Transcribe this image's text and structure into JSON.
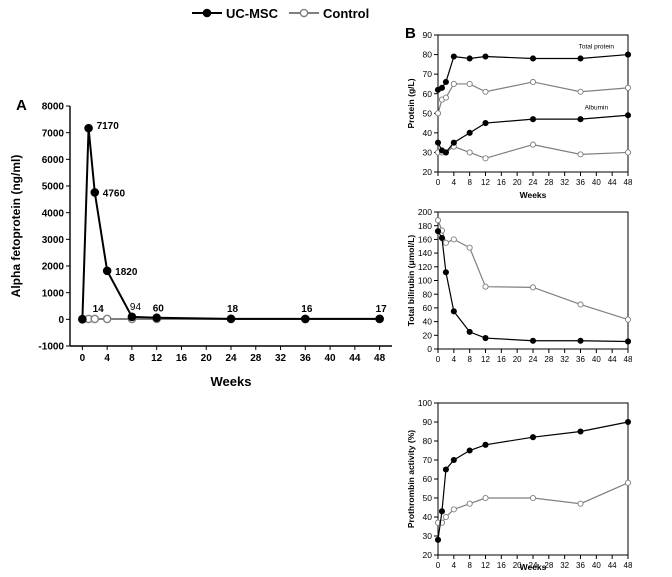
{
  "legend": {
    "items": [
      {
        "label": "UC-MSC",
        "color": "#000000",
        "marker": "filled-circle"
      },
      {
        "label": "Control",
        "color": "#7f7f7f",
        "marker": "open-circle"
      }
    ]
  },
  "chart_data": [
    {
      "id": "A",
      "panel_label": "A",
      "type": "line",
      "xlabel": "Weeks",
      "ylabel": "Alpha fetoprotein (ng/ml)",
      "xlim": [
        -2,
        50
      ],
      "ylim": [
        -1000,
        8000
      ],
      "xticks": [
        0,
        4,
        8,
        12,
        16,
        20,
        24,
        28,
        32,
        36,
        40,
        44,
        48
      ],
      "yticks": [
        -1000,
        0,
        1000,
        2000,
        3000,
        4000,
        5000,
        6000,
        7000,
        8000
      ],
      "grid": false,
      "series": [
        {
          "name": "UC-MSC",
          "style": "filled",
          "x": [
            0,
            1,
            2,
            4,
            8,
            12,
            24,
            36,
            48
          ],
          "y": [
            0,
            7170,
            4760,
            1820,
            94,
            60,
            18,
            16,
            17
          ]
        },
        {
          "name": "Control",
          "style": "open",
          "x": [
            0,
            1,
            2,
            4,
            8,
            12,
            24,
            36,
            48
          ],
          "y": [
            14,
            14,
            14,
            14,
            14,
            14,
            14,
            14,
            14
          ]
        }
      ],
      "data_labels": [
        {
          "text": "7170",
          "x": 1,
          "y": 7170
        },
        {
          "text": "4760",
          "x": 2,
          "y": 4760
        },
        {
          "text": "1820",
          "x": 4,
          "y": 1820
        },
        {
          "text": "14",
          "x": 1,
          "y": 14
        },
        {
          "text": "94",
          "x": 8,
          "y": 94
        },
        {
          "text": "60",
          "x": 12,
          "y": 60
        },
        {
          "text": "18",
          "x": 24,
          "y": 18
        },
        {
          "text": "16",
          "x": 36,
          "y": 16
        },
        {
          "text": "17",
          "x": 48,
          "y": 17
        }
      ]
    },
    {
      "id": "B1",
      "panel_label": "B",
      "type": "line",
      "xlabel": "Weeks",
      "ylabel": "Protein (g/L)",
      "xlim": [
        0,
        48
      ],
      "ylim": [
        20,
        90
      ],
      "xticks": [
        0,
        4,
        8,
        12,
        16,
        20,
        24,
        28,
        32,
        36,
        40,
        44,
        48
      ],
      "yticks": [
        20,
        30,
        40,
        50,
        60,
        70,
        80,
        90
      ],
      "grid": false,
      "annotations": [
        {
          "text": "Total protein",
          "x": 40,
          "y": 83
        },
        {
          "text": "Albumin",
          "x": 40,
          "y": 52
        }
      ],
      "series": [
        {
          "name": "UC-MSC",
          "style": "filled",
          "x": [
            0,
            1,
            2,
            4,
            8,
            12,
            24,
            36,
            48
          ],
          "y": [
            62,
            63,
            66,
            79,
            78,
            79,
            78,
            78,
            80
          ]
        },
        {
          "name": "Control",
          "style": "open",
          "x": [
            0,
            1,
            2,
            4,
            8,
            12,
            24,
            36,
            48
          ],
          "y": [
            50,
            57,
            58,
            65,
            65,
            61,
            66,
            61,
            63
          ]
        },
        {
          "name": "UC-MSC",
          "style": "filled",
          "x": [
            0,
            1,
            2,
            4,
            8,
            12,
            24,
            36,
            48
          ],
          "y": [
            35,
            31,
            30,
            35,
            40,
            45,
            47,
            47,
            49
          ]
        },
        {
          "name": "Control",
          "style": "open",
          "x": [
            0,
            1,
            2,
            4,
            8,
            12,
            24,
            36,
            48
          ],
          "y": [
            30,
            30,
            30,
            33,
            30,
            27,
            34,
            29,
            30
          ]
        }
      ]
    },
    {
      "id": "B2",
      "type": "line",
      "xlabel": "",
      "ylabel": "Total bilirubin (μmol/L)",
      "xlim": [
        0,
        48
      ],
      "ylim": [
        0,
        200
      ],
      "xticks": [
        0,
        4,
        8,
        12,
        16,
        20,
        24,
        28,
        32,
        36,
        40,
        44,
        48
      ],
      "yticks": [
        0,
        20,
        40,
        60,
        80,
        100,
        120,
        140,
        160,
        180,
        200
      ],
      "grid": false,
      "series": [
        {
          "name": "UC-MSC",
          "style": "filled",
          "x": [
            0,
            1,
            2,
            4,
            8,
            12,
            24,
            36,
            48
          ],
          "y": [
            172,
            162,
            112,
            55,
            25,
            16,
            12,
            12,
            11
          ]
        },
        {
          "name": "Control",
          "style": "open",
          "x": [
            0,
            1,
            2,
            4,
            8,
            12,
            24,
            36,
            48
          ],
          "y": [
            188,
            173,
            155,
            160,
            148,
            91,
            90,
            65,
            43
          ]
        }
      ]
    },
    {
      "id": "B3",
      "type": "line",
      "xlabel": "Weeks",
      "ylabel": "Prothrombin activity (%)",
      "xlim": [
        0,
        48
      ],
      "ylim": [
        20,
        100
      ],
      "xticks": [
        0,
        4,
        8,
        12,
        16,
        20,
        24,
        28,
        32,
        36,
        40,
        44,
        48
      ],
      "yticks": [
        20,
        30,
        40,
        50,
        60,
        70,
        80,
        90,
        100
      ],
      "grid": false,
      "series": [
        {
          "name": "UC-MSC",
          "style": "filled",
          "x": [
            0,
            1,
            2,
            4,
            8,
            12,
            24,
            36,
            48
          ],
          "y": [
            28,
            43,
            65,
            70,
            75,
            78,
            82,
            85,
            90
          ]
        },
        {
          "name": "Control",
          "style": "open",
          "x": [
            0,
            1,
            2,
            4,
            8,
            12,
            24,
            36,
            48
          ],
          "y": [
            37,
            37,
            40,
            44,
            47,
            50,
            50,
            47,
            58
          ]
        }
      ]
    }
  ]
}
